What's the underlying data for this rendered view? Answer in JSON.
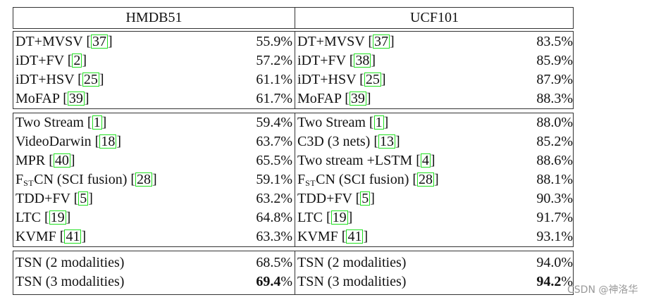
{
  "header": {
    "left": "HMDB51",
    "right": "UCF101"
  },
  "groups": [
    {
      "rows": [
        [
          {
            "name": "DT+MVSV",
            "ref": "37",
            "value": "55.9",
            "pct": "%"
          },
          {
            "name": "DT+MVSV",
            "ref": "37",
            "value": "83.5",
            "pct": "%"
          }
        ],
        [
          {
            "name": "iDT+FV",
            "ref": "2",
            "value": "57.2",
            "pct": "%"
          },
          {
            "name": "iDT+FV",
            "ref": "38",
            "value": "85.9",
            "pct": "%"
          }
        ],
        [
          {
            "name": "iDT+HSV",
            "ref": "25",
            "value": "61.1",
            "pct": "%"
          },
          {
            "name": "iDT+HSV",
            "ref": "25",
            "value": "87.9",
            "pct": "%"
          }
        ],
        [
          {
            "name": "MoFAP",
            "ref": "39",
            "value": "61.7",
            "pct": "%"
          },
          {
            "name": "MoFAP",
            "ref": "39",
            "value": "88.3",
            "pct": "%"
          }
        ]
      ]
    },
    {
      "rows": [
        [
          {
            "name": "Two Stream",
            "ref": "1",
            "value": "59.4",
            "pct": "%"
          },
          {
            "name": "Two Stream",
            "ref": "1",
            "value": "88.0",
            "pct": "%"
          }
        ],
        [
          {
            "name": "VideoDarwin",
            "ref": "18",
            "value": "63.7",
            "pct": "%"
          },
          {
            "name": "C3D (3 nets)",
            "ref": "13",
            "value": "85.2",
            "pct": "%"
          }
        ],
        [
          {
            "name": "MPR",
            "ref": "40",
            "value": "65.5",
            "pct": "%"
          },
          {
            "name": "Two stream +LSTM",
            "ref": "4",
            "value": "88.6",
            "pct": "%"
          }
        ],
        [
          {
            "name": "F",
            "sub": "ST",
            "rest": "CN (SCI fusion)",
            "ref": "28",
            "value": "59.1",
            "pct": "%"
          },
          {
            "name": "F",
            "sub": "ST",
            "rest": "CN (SCI fusion)",
            "ref": "28",
            "value": "88.1",
            "pct": "%"
          }
        ],
        [
          {
            "name": "TDD+FV",
            "ref": "5",
            "value": "63.2",
            "pct": "%"
          },
          {
            "name": "TDD+FV",
            "ref": "5",
            "value": "90.3",
            "pct": "%"
          }
        ],
        [
          {
            "name": "LTC",
            "ref": "19",
            "value": "64.8",
            "pct": "%"
          },
          {
            "name": "LTC",
            "ref": "19",
            "value": "91.7",
            "pct": "%"
          }
        ],
        [
          {
            "name": "KVMF",
            "ref": "41",
            "value": "63.3",
            "pct": "%"
          },
          {
            "name": "KVMF",
            "ref": "41",
            "value": "93.1",
            "pct": "%"
          }
        ]
      ]
    },
    {
      "rows": [
        [
          {
            "name": "TSN (2 modalities)",
            "value": "68.5",
            "pct": "%"
          },
          {
            "name": "TSN (2 modalities)",
            "value": "94.0",
            "pct": "%"
          }
        ],
        [
          {
            "name": "TSN (3 modalities)",
            "value": "69.4",
            "pct": "%",
            "bold": true
          },
          {
            "name": "TSN (3 modalities)",
            "value": "94.2",
            "pct": "%",
            "bold": true
          }
        ]
      ]
    }
  ],
  "watermark": "CSDN @神洛华"
}
